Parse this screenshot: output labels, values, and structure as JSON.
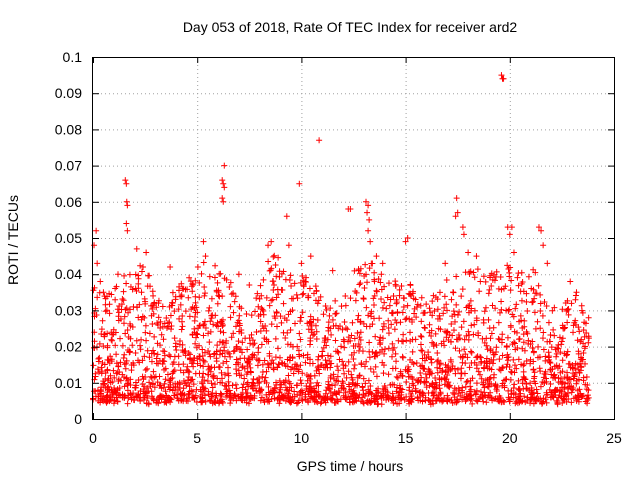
{
  "chart_data": {
    "type": "scatter",
    "title": "Day 053 of 2018, Rate Of TEC Index for receiver ard2",
    "xlabel": "GPS time / hours",
    "ylabel": "ROTI / TECUs",
    "xlim": [
      0,
      25
    ],
    "ylim": [
      0,
      0.1
    ],
    "xticks": [
      0,
      5,
      10,
      15,
      20,
      25
    ],
    "xtick_labels": [
      "0",
      "5",
      "10",
      "15",
      "20",
      "25"
    ],
    "yticks": [
      0,
      0.01,
      0.02,
      0.03,
      0.04,
      0.05,
      0.06,
      0.07,
      0.08,
      0.09,
      0.1
    ],
    "ytick_labels": [
      "0",
      "0.01",
      "0.02",
      "0.03",
      "0.04",
      "0.05",
      "0.06",
      "0.07",
      "0.08",
      "0.09",
      "0.1"
    ],
    "grid": true,
    "marker": "+",
    "color": "#ff0000",
    "series": [
      {
        "name": "ard2",
        "points": [
          [
            0.05,
            0.048
          ],
          [
            0.15,
            0.052
          ],
          [
            0.2,
            0.043
          ],
          [
            0.35,
            0.038
          ],
          [
            0.5,
            0.035
          ],
          [
            1.55,
            0.066
          ],
          [
            1.6,
            0.065
          ],
          [
            1.62,
            0.06
          ],
          [
            1.65,
            0.059
          ],
          [
            1.6,
            0.054
          ],
          [
            1.65,
            0.052
          ],
          [
            1.2,
            0.04
          ],
          [
            2.1,
            0.047
          ],
          [
            2.4,
            0.042
          ],
          [
            2.55,
            0.046
          ],
          [
            3.7,
            0.042
          ],
          [
            4.3,
            0.036
          ],
          [
            5.3,
            0.049
          ],
          [
            5.4,
            0.045
          ],
          [
            6.2,
            0.066
          ],
          [
            6.25,
            0.065
          ],
          [
            6.3,
            0.07
          ],
          [
            6.2,
            0.061
          ],
          [
            6.25,
            0.06
          ],
          [
            6.3,
            0.064
          ],
          [
            7.0,
            0.04
          ],
          [
            7.5,
            0.037
          ],
          [
            8.4,
            0.048
          ],
          [
            8.55,
            0.049
          ],
          [
            9.3,
            0.056
          ],
          [
            9.4,
            0.048
          ],
          [
            9.9,
            0.065
          ],
          [
            10.0,
            0.043
          ],
          [
            10.45,
            0.045
          ],
          [
            10.85,
            0.077
          ],
          [
            11.5,
            0.041
          ],
          [
            12.25,
            0.058
          ],
          [
            12.35,
            0.058
          ],
          [
            13.1,
            0.06
          ],
          [
            13.15,
            0.057
          ],
          [
            13.2,
            0.059
          ],
          [
            13.25,
            0.055
          ],
          [
            13.2,
            0.052
          ],
          [
            13.3,
            0.049
          ],
          [
            13.6,
            0.045
          ],
          [
            13.9,
            0.043
          ],
          [
            15.0,
            0.049
          ],
          [
            15.1,
            0.05
          ],
          [
            16.9,
            0.043
          ],
          [
            17.4,
            0.056
          ],
          [
            17.45,
            0.061
          ],
          [
            17.5,
            0.057
          ],
          [
            17.75,
            0.053
          ],
          [
            17.8,
            0.051
          ],
          [
            18.0,
            0.046
          ],
          [
            18.4,
            0.045
          ],
          [
            19.6,
            0.095
          ],
          [
            19.65,
            0.094
          ],
          [
            19.7,
            0.094
          ],
          [
            19.9,
            0.053
          ],
          [
            20.0,
            0.051
          ],
          [
            20.1,
            0.053
          ],
          [
            20.2,
            0.046
          ],
          [
            21.4,
            0.053
          ],
          [
            21.5,
            0.052
          ],
          [
            21.6,
            0.048
          ],
          [
            21.8,
            0.043
          ],
          [
            22.9,
            0.038
          ],
          [
            23.2,
            0.035
          ]
        ]
      }
    ],
    "envelope": {
      "description": "dense band of observations across the day; per-hour upper envelope of the bulk of points",
      "hours": [
        0,
        0.5,
        1,
        1.5,
        2,
        2.5,
        3,
        3.5,
        4,
        4.5,
        5,
        5.5,
        6,
        6.5,
        7,
        7.5,
        8,
        8.5,
        9,
        9.5,
        10,
        10.5,
        11,
        11.5,
        12,
        12.5,
        13,
        13.5,
        14,
        14.5,
        15,
        15.5,
        16,
        16.5,
        17,
        17.5,
        18,
        18.5,
        19,
        19.5,
        20,
        20.5,
        21,
        21.5,
        22,
        22.5,
        23,
        23.5,
        23.8
      ],
      "upper": [
        0.04,
        0.035,
        0.038,
        0.04,
        0.043,
        0.045,
        0.035,
        0.03,
        0.038,
        0.04,
        0.045,
        0.042,
        0.043,
        0.04,
        0.032,
        0.03,
        0.04,
        0.046,
        0.045,
        0.04,
        0.042,
        0.038,
        0.036,
        0.034,
        0.036,
        0.04,
        0.044,
        0.043,
        0.04,
        0.038,
        0.04,
        0.036,
        0.033,
        0.035,
        0.04,
        0.042,
        0.045,
        0.042,
        0.04,
        0.042,
        0.043,
        0.04,
        0.044,
        0.036,
        0.03,
        0.032,
        0.035,
        0.035,
        0.03
      ],
      "lower": 0.005
    }
  }
}
